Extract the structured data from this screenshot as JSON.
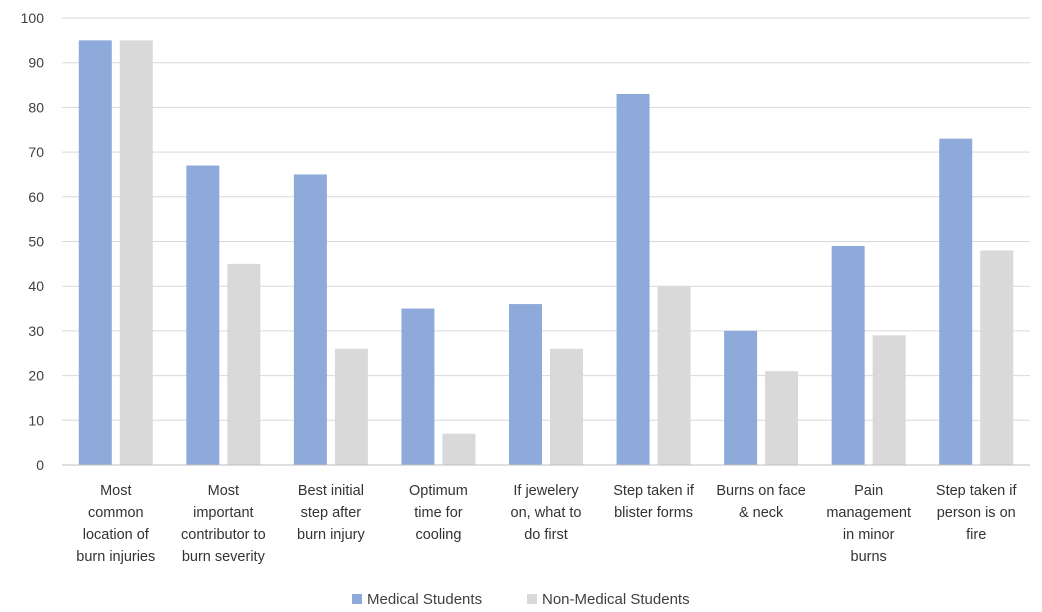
{
  "chart_data": {
    "type": "bar",
    "categories": [
      [
        "Most",
        "common",
        "location of",
        "burn injuries"
      ],
      [
        "Most",
        "important",
        "contributor to",
        "burn severity"
      ],
      [
        "Best initial",
        "step after",
        "burn injury"
      ],
      [
        "Optimum",
        "time for",
        "cooling"
      ],
      [
        "If jewelery",
        "on, what to",
        "do first"
      ],
      [
        "Step taken if",
        "blister forms"
      ],
      [
        "Burns on face",
        "& neck"
      ],
      [
        "Pain",
        "management",
        "in minor",
        "burns"
      ],
      [
        "Step taken if",
        "person is on",
        "fire"
      ]
    ],
    "series": [
      {
        "name": "Medical Students",
        "color": "#8eaadb",
        "values": [
          95,
          67,
          65,
          35,
          36,
          83,
          30,
          49,
          73
        ]
      },
      {
        "name": "Non-Medical Students",
        "color": "#d9d9d9",
        "values": [
          95,
          45,
          26,
          7,
          26,
          40,
          21,
          29,
          48
        ]
      }
    ],
    "ylim": [
      0,
      100
    ],
    "yticks": [
      "0",
      "10",
      "20",
      "30",
      "40",
      "50",
      "60",
      "70",
      "80",
      "90",
      "100"
    ],
    "grid": true,
    "legend_position": "bottom-center"
  }
}
